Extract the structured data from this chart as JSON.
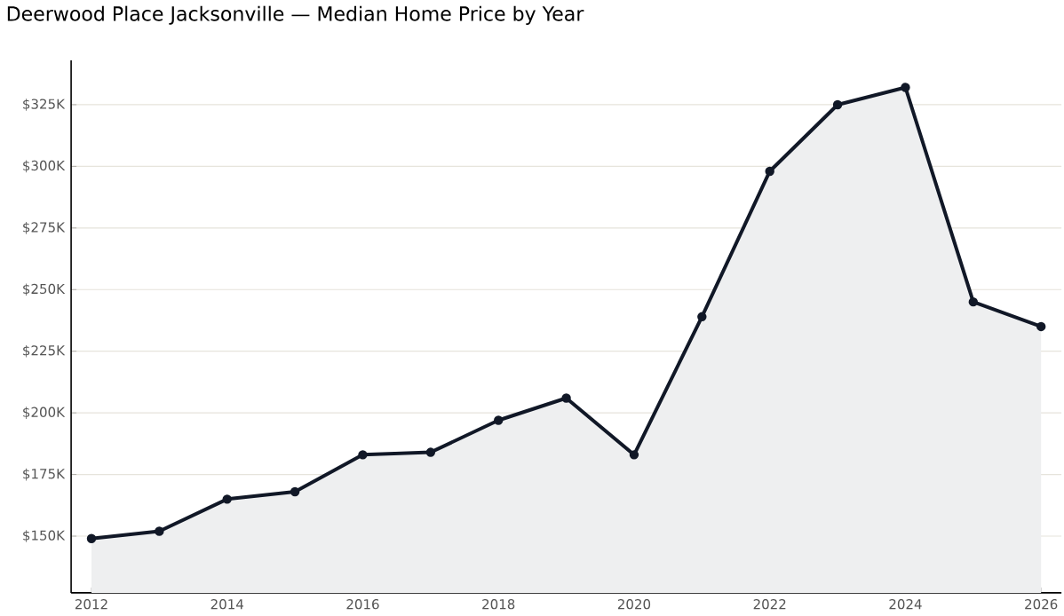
{
  "chart_data": {
    "type": "area",
    "title": "Deerwood Place Jacksonville — Median Home Price by Year",
    "x": [
      2012,
      2013,
      2014,
      2015,
      2016,
      2017,
      2018,
      2019,
      2020,
      2021,
      2022,
      2023,
      2024,
      2025,
      2026
    ],
    "series": [
      {
        "color": "#111827",
        "values": [
          149,
          152,
          165,
          168,
          183,
          184,
          197,
          206,
          183,
          239,
          298,
          325,
          332,
          245,
          235
        ]
      }
    ],
    "xlim": [
      2011.7,
      2026.3
    ],
    "ylim": [
      127,
      343
    ],
    "xticks": [
      2012,
      2014,
      2016,
      2018,
      2020,
      2022,
      2024,
      2026
    ],
    "yticks": [
      {
        "value": 150,
        "label": "$150K"
      },
      {
        "value": 175,
        "label": "$175K"
      },
      {
        "value": 200,
        "label": "$200K"
      },
      {
        "value": 225,
        "label": "$225K"
      },
      {
        "value": 250,
        "label": "$250K"
      },
      {
        "value": 275,
        "label": "$275K"
      },
      {
        "value": 300,
        "label": "$300K"
      },
      {
        "value": 325,
        "label": "$325K"
      }
    ],
    "grid": "y",
    "marker": "circle",
    "line_style": "solid"
  }
}
